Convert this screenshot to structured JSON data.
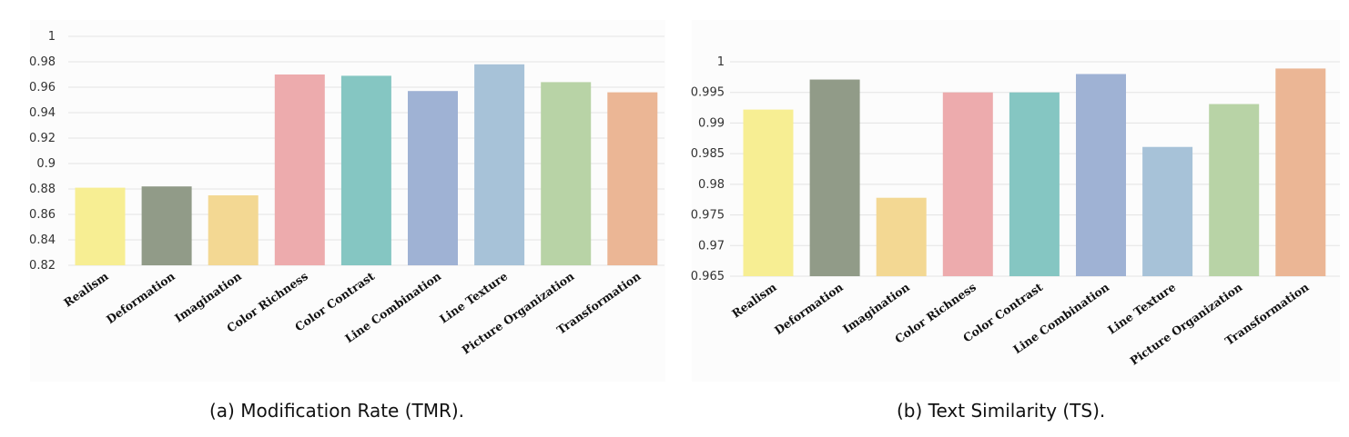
{
  "colors": [
    "#f7ee93",
    "#919b88",
    "#f3d893",
    "#edabad",
    "#85c6c2",
    "#9fb2d4",
    "#a7c2d8",
    "#b8d3a6",
    "#ebb695"
  ],
  "chart_data": [
    {
      "type": "bar",
      "caption": "(a) Modification Rate (TMR).",
      "categories": [
        "Realism",
        "Deformation",
        "Imagination",
        "Color Richness",
        "Color Contrast",
        "Line Combination",
        "Line Texture",
        "Picture Organization",
        "Transformation"
      ],
      "values": [
        0.881,
        0.882,
        0.875,
        0.97,
        0.969,
        0.957,
        0.978,
        0.964,
        0.956
      ],
      "ylim": [
        0.82,
        1
      ],
      "yticks": [
        "0.82",
        "0.84",
        "0.86",
        "0.88",
        "0.9",
        "0.92",
        "0.94",
        "0.96",
        "0.98",
        "1"
      ],
      "grid": true
    },
    {
      "type": "bar",
      "caption": "(b) Text Similarity (TS).",
      "categories": [
        "Realism",
        "Deformation",
        "Imagination",
        "Color Richness",
        "Color Contrast",
        "Line Combination",
        "Line Texture",
        "Picture Organization",
        "Transformation"
      ],
      "values": [
        0.9922,
        0.9971,
        0.9778,
        0.995,
        0.995,
        0.998,
        0.9861,
        0.9931,
        0.9989
      ],
      "ylim": [
        0.965,
        1
      ],
      "yticks": [
        "0.965",
        "0.97",
        "0.975",
        "0.98",
        "0.985",
        "0.99",
        "0.995",
        "1"
      ],
      "grid": true
    }
  ]
}
